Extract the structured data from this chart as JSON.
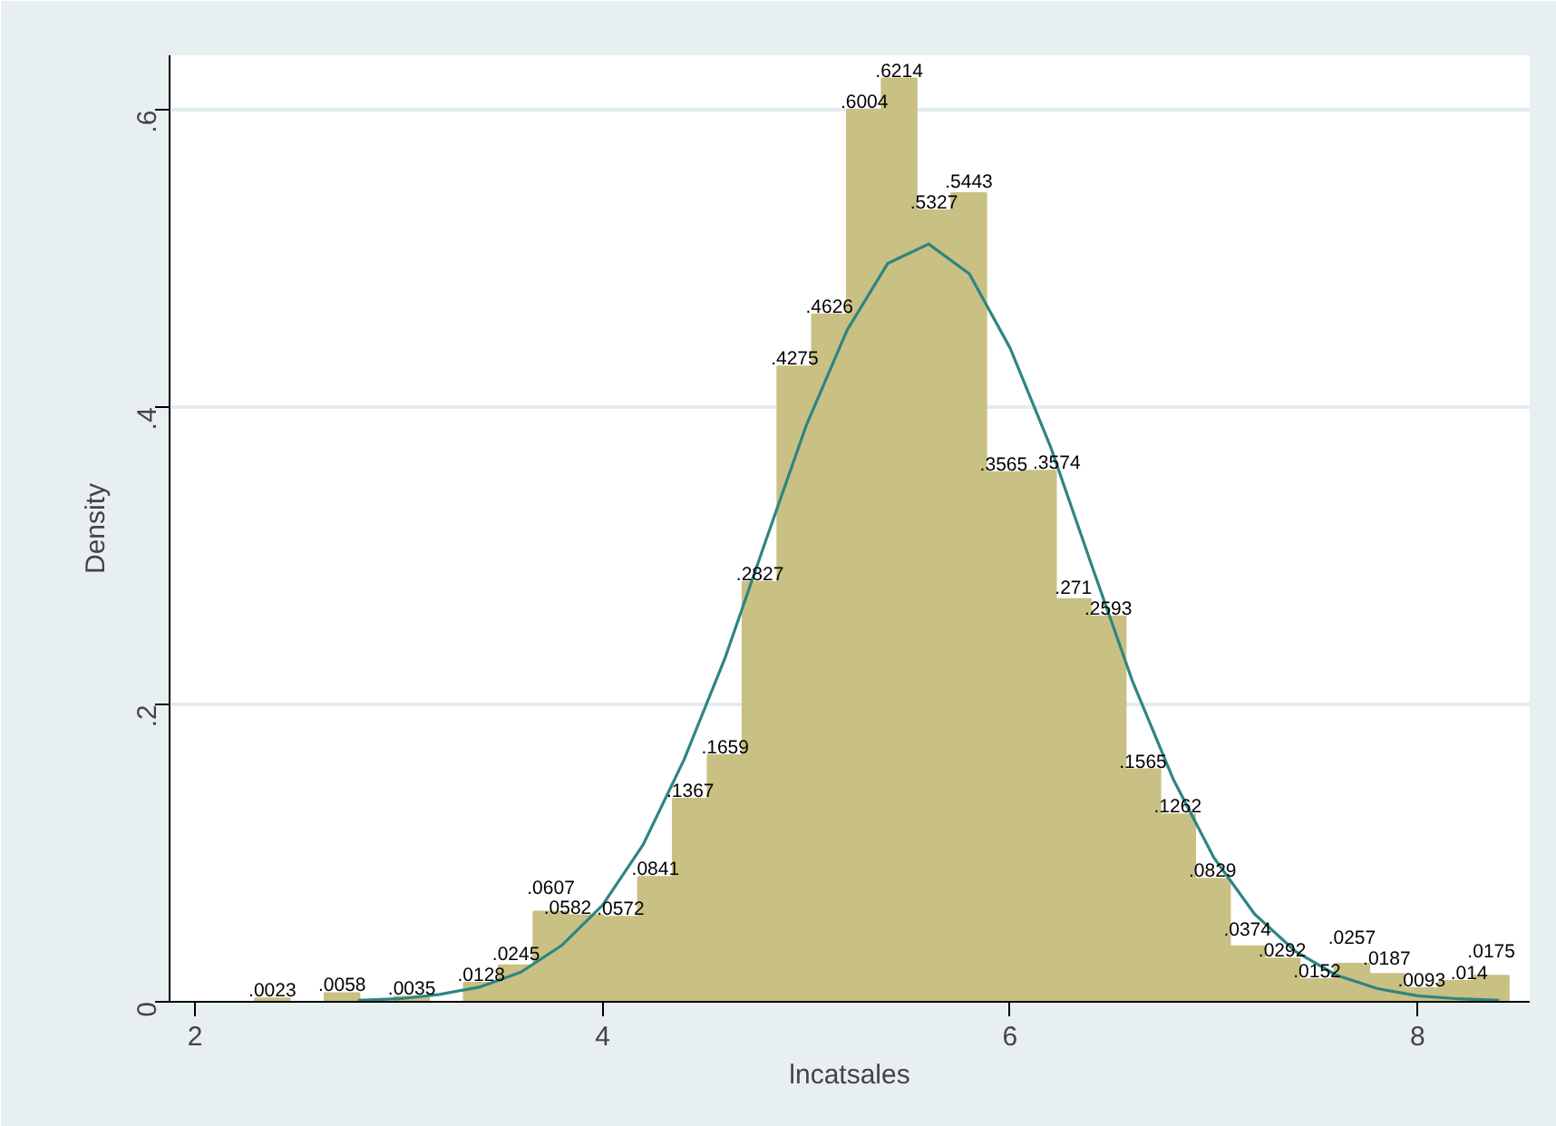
{
  "chart_data": {
    "type": "histogram",
    "xlabel": "lncatsales",
    "ylabel": "Density",
    "xlim": [
      1.875,
      8.55
    ],
    "ylim": [
      0,
      0.637
    ],
    "xticks": [
      2,
      4,
      6,
      8
    ],
    "yticks": [
      {
        "value": 0,
        "label": "0"
      },
      {
        "value": 0.2,
        "label": ".2"
      },
      {
        "value": 0.4,
        "label": ".4"
      },
      {
        "value": 0.6,
        "label": ".6"
      }
    ],
    "grid": "y",
    "series": [
      {
        "color": "#c9c083",
        "bins": [
          2.294,
          2.465,
          2.636,
          2.807,
          2.978,
          3.149,
          3.319,
          3.49,
          3.661,
          3.832,
          4.003,
          4.174,
          4.345,
          4.516,
          4.687,
          4.858,
          5.028,
          5.199,
          5.37,
          5.541,
          5.712,
          5.883,
          6.054,
          6.225,
          6.396,
          6.567,
          6.737,
          6.908,
          7.079,
          7.25,
          7.421,
          7.592,
          7.763,
          7.934,
          8.105,
          8.276,
          8.447
        ],
        "values": [
          0.0023,
          0,
          0.0058,
          0,
          0.0035,
          0,
          0.0128,
          0.0245,
          0.0607,
          0.0582,
          0.0572,
          0.0841,
          0.1367,
          0.1659,
          0.2827,
          0.4275,
          0.4626,
          0.6004,
          0.6214,
          0.5327,
          0.5443,
          0.3565,
          0.3574,
          0.271,
          0.2593,
          0.1565,
          0.1262,
          0.0829,
          0.0374,
          0.0292,
          0.0152,
          0.0257,
          0.0187,
          0.0093,
          0.014,
          0.0175
        ],
        "value_labels": [
          ".0023",
          null,
          ".0058",
          null,
          ".0035",
          null,
          ".0128",
          ".0245",
          ".0607",
          ".0582",
          ".0572",
          ".0841",
          ".1367",
          ".1659",
          ".2827",
          ".4275",
          ".4626",
          ".6004",
          ".6214",
          ".5327",
          ".5443",
          ".3565",
          ".3574",
          ".271",
          ".2593",
          ".1565",
          ".1262",
          ".0829",
          ".0374",
          ".0292",
          ".0152",
          ".0257",
          ".0187",
          ".0093",
          ".014",
          ".0175"
        ]
      },
      {
        "type": "line",
        "color": "#2e8583",
        "x": [
          2.8,
          3.0,
          3.2,
          3.4,
          3.6,
          3.8,
          4.0,
          4.2,
          4.4,
          4.6,
          4.8,
          5.0,
          5.2,
          5.4,
          5.6,
          5.8,
          6.0,
          6.2,
          6.4,
          6.6,
          6.8,
          7.0,
          7.2,
          7.4,
          7.6,
          7.8,
          8.0,
          8.2,
          8.4
        ],
        "values": [
          0.001,
          0.002,
          0.005,
          0.01,
          0.02,
          0.038,
          0.065,
          0.106,
          0.163,
          0.231,
          0.31,
          0.388,
          0.452,
          0.497,
          0.51,
          0.49,
          0.44,
          0.373,
          0.294,
          0.216,
          0.15,
          0.097,
          0.059,
          0.034,
          0.018,
          0.009,
          0.004,
          0.002,
          0.001
        ]
      }
    ]
  }
}
